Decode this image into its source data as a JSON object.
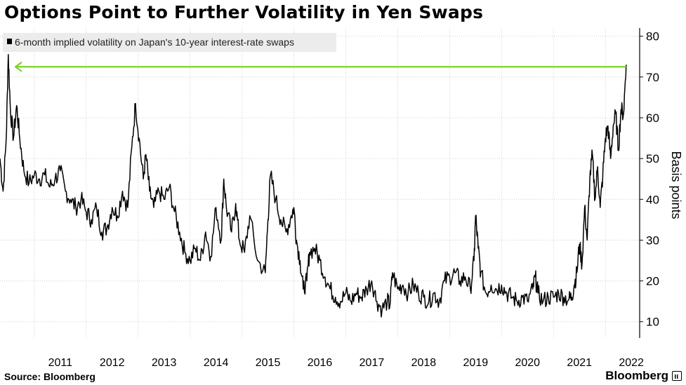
{
  "title": "Options Point to Further Volatility in Yen Swaps",
  "source": "Source: Bloomberg",
  "brand": "Bloomberg",
  "colors": {
    "line": "#000000",
    "arrow": "#7dd322",
    "grid": "#d0d0d0",
    "legend_bg": "#ececec"
  },
  "chart_data": {
    "type": "line",
    "title": "Options Point to Further Volatility in Yen Swaps",
    "ylabel": "Basis points",
    "xlabel": "",
    "ylim": [
      6,
      82
    ],
    "xlim": [
      2010.34,
      2022.66
    ],
    "yticks": [
      10,
      20,
      30,
      40,
      50,
      60,
      70,
      80
    ],
    "xticks": [
      "2011",
      "2012",
      "2013",
      "2014",
      "2015",
      "2016",
      "2017",
      "2018",
      "2019",
      "2020",
      "2021",
      "2022"
    ],
    "grid": true,
    "legend_position": "top-left",
    "series": [
      {
        "name": "6-month implied volatility on Japan's 10-year interest-rate swaps",
        "points": [
          [
            2010.34,
            50
          ],
          [
            2010.4,
            42
          ],
          [
            2010.46,
            55
          ],
          [
            2010.5,
            75.5
          ],
          [
            2010.54,
            62
          ],
          [
            2010.6,
            55
          ],
          [
            2010.66,
            63
          ],
          [
            2010.72,
            55
          ],
          [
            2010.8,
            47
          ],
          [
            2010.9,
            44
          ],
          [
            2011.0,
            46
          ],
          [
            2011.1,
            45
          ],
          [
            2011.2,
            46
          ],
          [
            2011.3,
            43
          ],
          [
            2011.4,
            45
          ],
          [
            2011.5,
            47
          ],
          [
            2011.6,
            42
          ],
          [
            2011.7,
            40
          ],
          [
            2011.8,
            38
          ],
          [
            2011.9,
            40
          ],
          [
            2012.0,
            37
          ],
          [
            2012.1,
            35
          ],
          [
            2012.2,
            38
          ],
          [
            2012.3,
            32
          ],
          [
            2012.4,
            33
          ],
          [
            2012.5,
            38
          ],
          [
            2012.6,
            36
          ],
          [
            2012.7,
            42
          ],
          [
            2012.8,
            38
          ],
          [
            2012.88,
            53
          ],
          [
            2012.95,
            63.5
          ],
          [
            2013.02,
            55
          ],
          [
            2013.1,
            45
          ],
          [
            2013.15,
            51
          ],
          [
            2013.22,
            42
          ],
          [
            2013.3,
            38
          ],
          [
            2013.4,
            42
          ],
          [
            2013.5,
            40
          ],
          [
            2013.6,
            43
          ],
          [
            2013.7,
            37
          ],
          [
            2013.8,
            32
          ],
          [
            2013.9,
            27
          ],
          [
            2014.0,
            25
          ],
          [
            2014.1,
            28
          ],
          [
            2014.2,
            25
          ],
          [
            2014.3,
            32
          ],
          [
            2014.4,
            26
          ],
          [
            2014.5,
            38
          ],
          [
            2014.6,
            30
          ],
          [
            2014.65,
            45
          ],
          [
            2014.7,
            38
          ],
          [
            2014.8,
            32
          ],
          [
            2014.88,
            39
          ],
          [
            2014.95,
            30
          ],
          [
            2015.05,
            27
          ],
          [
            2015.15,
            36
          ],
          [
            2015.3,
            25
          ],
          [
            2015.45,
            22
          ],
          [
            2015.5,
            35
          ],
          [
            2015.55,
            46
          ],
          [
            2015.65,
            40
          ],
          [
            2015.75,
            35
          ],
          [
            2015.85,
            32
          ],
          [
            2015.95,
            36
          ],
          [
            2016.0,
            38
          ],
          [
            2016.05,
            30
          ],
          [
            2016.12,
            25
          ],
          [
            2016.18,
            18
          ],
          [
            2016.25,
            20
          ],
          [
            2016.3,
            27
          ],
          [
            2016.4,
            28
          ],
          [
            2016.5,
            25
          ],
          [
            2016.6,
            21
          ],
          [
            2016.7,
            18
          ],
          [
            2016.8,
            16
          ],
          [
            2016.9,
            15
          ],
          [
            2017.0,
            17
          ],
          [
            2017.1,
            15
          ],
          [
            2017.2,
            17
          ],
          [
            2017.3,
            16
          ],
          [
            2017.4,
            18
          ],
          [
            2017.5,
            20
          ],
          [
            2017.6,
            15
          ],
          [
            2017.7,
            13
          ],
          [
            2017.8,
            15
          ],
          [
            2017.85,
            14
          ],
          [
            2017.9,
            22
          ],
          [
            2018.0,
            18
          ],
          [
            2018.1,
            19
          ],
          [
            2018.2,
            17
          ],
          [
            2018.3,
            19
          ],
          [
            2018.4,
            17
          ],
          [
            2018.5,
            16
          ],
          [
            2018.6,
            15
          ],
          [
            2018.7,
            17
          ],
          [
            2018.8,
            15
          ],
          [
            2018.9,
            20
          ],
          [
            2019.0,
            21
          ],
          [
            2019.1,
            22
          ],
          [
            2019.2,
            20
          ],
          [
            2019.3,
            21
          ],
          [
            2019.4,
            18
          ],
          [
            2019.47,
            25
          ],
          [
            2019.5,
            36
          ],
          [
            2019.55,
            28
          ],
          [
            2019.6,
            22
          ],
          [
            2019.7,
            17
          ],
          [
            2019.8,
            19
          ],
          [
            2019.9,
            18
          ],
          [
            2020.0,
            19
          ],
          [
            2020.1,
            17
          ],
          [
            2020.2,
            16
          ],
          [
            2020.3,
            15
          ],
          [
            2020.4,
            16
          ],
          [
            2020.5,
            15
          ],
          [
            2020.6,
            18
          ],
          [
            2020.65,
            21
          ],
          [
            2020.7,
            17
          ],
          [
            2020.8,
            15
          ],
          [
            2020.9,
            16
          ],
          [
            2021.0,
            16
          ],
          [
            2021.1,
            17
          ],
          [
            2021.2,
            16
          ],
          [
            2021.3,
            15.5
          ],
          [
            2021.35,
            16
          ],
          [
            2021.4,
            19
          ],
          [
            2021.45,
            22
          ],
          [
            2021.5,
            29
          ],
          [
            2021.55,
            24
          ],
          [
            2021.6,
            38
          ],
          [
            2021.65,
            30
          ],
          [
            2021.7,
            45
          ],
          [
            2021.75,
            51
          ],
          [
            2021.8,
            40
          ],
          [
            2021.85,
            48
          ],
          [
            2021.9,
            38
          ],
          [
            2021.95,
            46
          ],
          [
            2022.0,
            55
          ],
          [
            2022.05,
            58
          ],
          [
            2022.1,
            50
          ],
          [
            2022.15,
            58
          ],
          [
            2022.2,
            61
          ],
          [
            2022.25,
            52
          ],
          [
            2022.3,
            62
          ],
          [
            2022.35,
            61
          ],
          [
            2022.4,
            73
          ]
        ]
      }
    ],
    "annotations": [
      {
        "type": "arrow",
        "from": [
          2022.4,
          72.5
        ],
        "to": [
          2010.64,
          72.5
        ]
      }
    ]
  }
}
